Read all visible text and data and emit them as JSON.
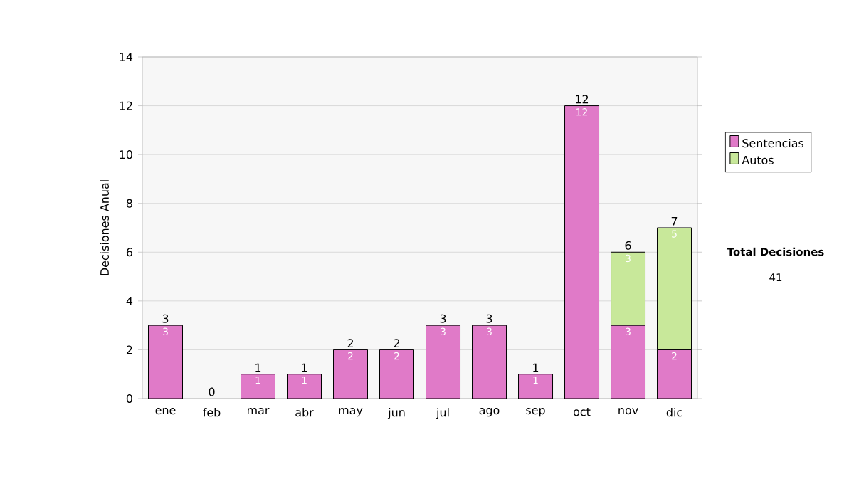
{
  "chart_data": {
    "type": "bar",
    "stacked": true,
    "ylabel": "Decisiones Anual",
    "categories": [
      "ene",
      "feb",
      "mar",
      "abr",
      "may",
      "jun",
      "jul",
      "ago",
      "sep",
      "oct",
      "nov",
      "dic"
    ],
    "series": [
      {
        "name": "Sentencias",
        "color": "#e07ac8",
        "values": [
          3,
          0,
          1,
          1,
          2,
          2,
          3,
          3,
          1,
          12,
          3,
          2
        ],
        "value_labels": [
          "3",
          null,
          "1",
          "1",
          "2",
          "2",
          "3",
          "3",
          "1",
          "12",
          "3",
          "2"
        ]
      },
      {
        "name": "Autos",
        "color": "#c8e89a",
        "values": [
          0,
          0,
          0,
          0,
          0,
          0,
          0,
          0,
          0,
          0,
          3,
          5
        ],
        "value_labels": [
          null,
          null,
          null,
          null,
          null,
          null,
          null,
          null,
          null,
          null,
          "3",
          "5"
        ]
      }
    ],
    "totals": [
      "3",
      "0",
      "1",
      "1",
      "2",
      "2",
      "3",
      "3",
      "1",
      "12",
      "6",
      "7"
    ],
    "ylim": [
      0,
      14
    ],
    "yticks": [
      0,
      2,
      4,
      6,
      8,
      10,
      12,
      14
    ],
    "grid": "y",
    "legend": "right",
    "annotations": [
      "Total Decisiones",
      "41"
    ]
  }
}
